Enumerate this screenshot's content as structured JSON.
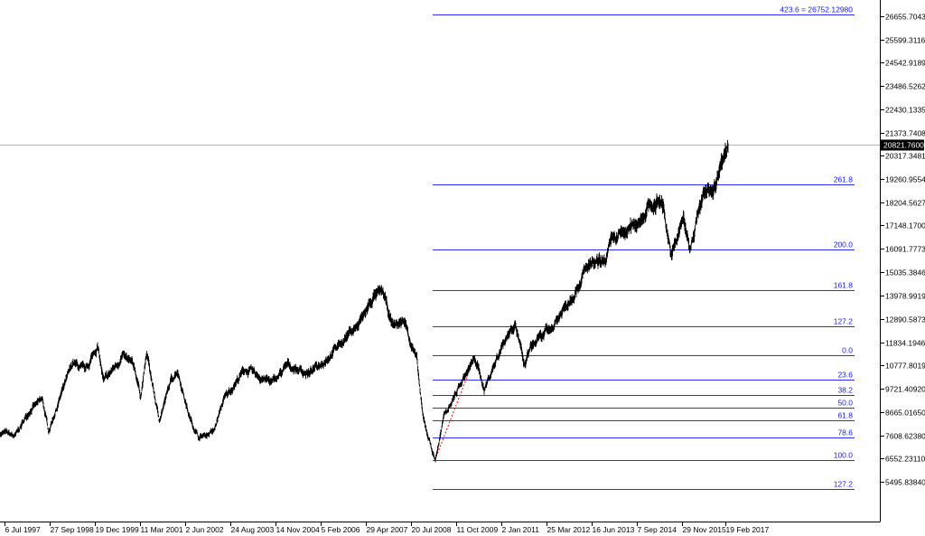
{
  "chart_data": {
    "type": "line",
    "y_axis_ticks": [
      "26655.70430",
      "25599.31160",
      "24542.91890",
      "23486.52620",
      "22430.13350",
      "21373.74080",
      "20317.34810",
      "19260.95540",
      "18204.56270",
      "17148.17000",
      "16091.77730",
      "15035.38460",
      "13978.99190",
      "12890.58730",
      "11834.19460",
      "10777.80190",
      "9721.40920",
      "8665.01650",
      "7608.62380",
      "6552.23110",
      "5495.83840"
    ],
    "ylim": [
      4930,
      27430
    ],
    "x_axis_ticks": [
      "6 Jul 1997",
      "27 Sep 1998",
      "19 Dec 1999",
      "11 Mar 2001",
      "2 Jun 2002",
      "24 Aug 2003",
      "14 Nov 2004",
      "5 Feb 2006",
      "29 Apr 2007",
      "20 Jul 2008",
      "11 Oct 2009",
      "2 Jan 2011",
      "25 Mar 2012",
      "16 Jun 2013",
      "7 Sep 2014",
      "29 Nov 2015",
      "19 Feb 2017"
    ],
    "current_price": "20821.76000",
    "current_price_value": 20821.76,
    "fibonacci": {
      "base_low": 6470,
      "base_high": 11258,
      "levels": [
        {
          "label": "423.6 = 26752.12980",
          "value": 26752.1298
        },
        {
          "label": "261.8",
          "value": 18999
        },
        {
          "label": "200.0",
          "value": 16046
        },
        {
          "label": "161.8",
          "value": 14219
        },
        {
          "label": "127.2",
          "value": 12562
        },
        {
          "label": "0.0",
          "value": 11258
        },
        {
          "label": "23.6",
          "value": 10128
        },
        {
          "label": "38.2",
          "value": 9429
        },
        {
          "label": "50.0",
          "value": 8864
        },
        {
          "label": "61.8",
          "value": 8299
        },
        {
          "label": "78.6",
          "value": 7494
        },
        {
          "label": "100.0",
          "value": 6470
        },
        {
          "label": "127.2",
          "value": 5167
        }
      ]
    },
    "price_series": {
      "x": [
        "1997-07",
        "1997-10",
        "1998-03",
        "1998-07",
        "1998-09",
        "1999-01",
        "1999-05",
        "1999-09",
        "2000-01",
        "2000-03",
        "2000-09",
        "2001-01",
        "2001-03",
        "2001-05",
        "2001-09",
        "2002-01",
        "2002-03",
        "2002-07",
        "2002-10",
        "2003-03",
        "2003-06",
        "2004-01",
        "2004-10",
        "2005-03",
        "2005-10",
        "2006-05",
        "2006-12",
        "2007-02",
        "2007-07",
        "2007-10",
        "2008-01",
        "2008-05",
        "2008-09",
        "2008-11",
        "2009-03",
        "2009-06",
        "2010-01",
        "2010-04",
        "2010-07",
        "2011-01",
        "2011-05",
        "2011-08",
        "2011-10",
        "2012-05",
        "2012-10",
        "2013-05",
        "2013-10",
        "2014-01",
        "2014-07",
        "2014-12",
        "2015-05",
        "2015-08",
        "2015-12",
        "2016-02",
        "2016-05",
        "2016-07",
        "2016-11",
        "2016-12",
        "2017-03"
      ],
      "y": [
        7700,
        7550,
        8800,
        9200,
        7800,
        9400,
        10900,
        10500,
        11700,
        10000,
        11200,
        10700,
        9400,
        11300,
        8300,
        10100,
        10600,
        8400,
        7500,
        7800,
        9200,
        10600,
        10000,
        10800,
        10400,
        11300,
        12400,
        12600,
        13900,
        14100,
        12600,
        12800,
        11000,
        8400,
        6470,
        8500,
        10400,
        11100,
        9700,
        11800,
        12800,
        10700,
        11600,
        12500,
        13600,
        15300,
        15400,
        16500,
        17000,
        17900,
        18300,
        15700,
        17500,
        16000,
        17800,
        18500,
        19000,
        19900,
        20821.76
      ]
    }
  }
}
